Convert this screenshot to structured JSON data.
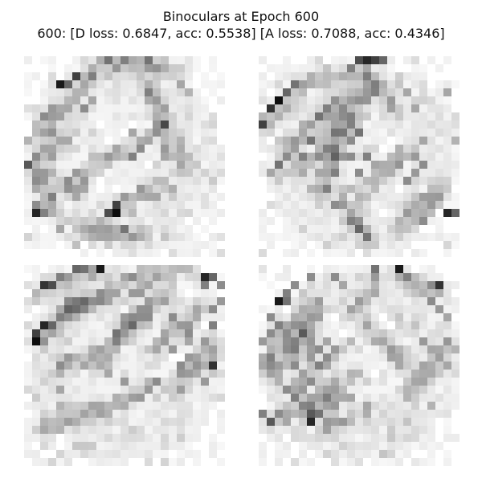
{
  "figure": {
    "title": "Binoculars at Epoch 600",
    "subtitle": "600: [D loss: 0.6847, acc: 0.5538]  [A loss: 0.7088, acc: 0.4346]"
  },
  "panels": [
    {
      "dark_strokes": [
        [
          [
            2,
            9
          ],
          [
            8,
            2
          ]
        ],
        [
          [
            9,
            0
          ],
          [
            19,
            1
          ]
        ],
        [
          [
            15,
            3
          ],
          [
            19,
            13
          ]
        ],
        [
          [
            0,
            13
          ],
          [
            5,
            10
          ]
        ],
        [
          [
            5,
            16
          ],
          [
            11,
            12
          ]
        ],
        [
          [
            10,
            19
          ],
          [
            17,
            15
          ]
        ],
        [
          [
            13,
            11
          ],
          [
            17,
            8
          ]
        ],
        [
          [
            6,
            21
          ],
          [
            14,
            22
          ]
        ],
        [
          [
            1,
            14
          ],
          [
            3,
            19
          ]
        ]
      ],
      "dark_pixels": [
        [
          4,
          3,
          0.9
        ],
        [
          6,
          2,
          0.75
        ],
        [
          5,
          3,
          0.6
        ],
        [
          10,
          0,
          0.55
        ],
        [
          12,
          0,
          0.5
        ],
        [
          15,
          0,
          0.55
        ],
        [
          2,
          7,
          0.45
        ],
        [
          3,
          6,
          0.4
        ],
        [
          7,
          6,
          0.45
        ],
        [
          8,
          5,
          0.35
        ],
        [
          15,
          4,
          0.5
        ],
        [
          16,
          5,
          0.4
        ],
        [
          19,
          3,
          0.35
        ],
        [
          20,
          4,
          0.3
        ],
        [
          0,
          13,
          0.65
        ],
        [
          1,
          12,
          0.45
        ],
        [
          2,
          14,
          0.4
        ],
        [
          1,
          15,
          0.45
        ],
        [
          5,
          15,
          0.45
        ],
        [
          6,
          14,
          0.4
        ],
        [
          3,
          17,
          0.5
        ],
        [
          1,
          18,
          0.45
        ],
        [
          2,
          19,
          0.5
        ],
        [
          1,
          19,
          0.85
        ],
        [
          6,
          17,
          0.35
        ],
        [
          7,
          16,
          0.35
        ],
        [
          10,
          19,
          0.7
        ],
        [
          11,
          18,
          0.75
        ],
        [
          11,
          19,
          0.95
        ],
        [
          9,
          20,
          0.3
        ],
        [
          12,
          17,
          0.4
        ],
        [
          13,
          12,
          0.5
        ],
        [
          14,
          11,
          0.45
        ],
        [
          10,
          12,
          0.4
        ],
        [
          11,
          11,
          0.35
        ],
        [
          17,
          11,
          0.4
        ],
        [
          17,
          12,
          0.35
        ],
        [
          9,
          22,
          0.35
        ],
        [
          12,
          21,
          0.3
        ],
        [
          16,
          17,
          0.35
        ],
        [
          13,
          9,
          0.35
        ],
        [
          19,
          10,
          0.3
        ],
        [
          0,
          10,
          0.3
        ],
        [
          8,
          12,
          0.25
        ],
        [
          4,
          21,
          0.35
        ],
        [
          6,
          23,
          0.25
        ],
        [
          14,
          21,
          0.25
        ],
        [
          3,
          14,
          0.3
        ]
      ]
    },
    {
      "dark_strokes": [
        [
          [
            0,
            8
          ],
          [
            3,
            5
          ]
        ],
        [
          [
            4,
            3
          ],
          [
            11,
            2
          ]
        ],
        [
          [
            3,
            11
          ],
          [
            10,
            5
          ]
        ],
        [
          [
            5,
            14
          ],
          [
            9,
            8
          ]
        ],
        [
          [
            7,
            17
          ],
          [
            10,
            6
          ]
        ],
        [
          [
            9,
            13
          ],
          [
            13,
            3
          ]
        ],
        [
          [
            12,
            17
          ],
          [
            18,
            11
          ]
        ],
        [
          [
            17,
            21
          ],
          [
            22,
            16
          ]
        ],
        [
          [
            13,
            1
          ],
          [
            16,
            6
          ]
        ],
        [
          [
            10,
            17
          ],
          [
            13,
            22
          ]
        ]
      ],
      "dark_pixels": [
        [
          2,
          5,
          0.95
        ],
        [
          1,
          6,
          0.8
        ],
        [
          0,
          8,
          0.75
        ],
        [
          3,
          4,
          0.6
        ],
        [
          4,
          3,
          0.55
        ],
        [
          13,
          0,
          0.85
        ],
        [
          14,
          0,
          0.75
        ],
        [
          12,
          0,
          0.7
        ],
        [
          15,
          0,
          0.6
        ],
        [
          11,
          1,
          0.5
        ],
        [
          8,
          6,
          0.5
        ],
        [
          7,
          7,
          0.55
        ],
        [
          6,
          10,
          0.55
        ],
        [
          5,
          12,
          0.5
        ],
        [
          7,
          12,
          0.45
        ],
        [
          8,
          11,
          0.5
        ],
        [
          10,
          7,
          0.45
        ],
        [
          11,
          8,
          0.5
        ],
        [
          11,
          10,
          0.45
        ],
        [
          12,
          9,
          0.55
        ],
        [
          11,
          12,
          0.45
        ],
        [
          13,
          12,
          0.5
        ],
        [
          14,
          13,
          0.35
        ],
        [
          12,
          14,
          0.45
        ],
        [
          2,
          13,
          0.55
        ],
        [
          3,
          12,
          0.45
        ],
        [
          1,
          14,
          0.35
        ],
        [
          9,
          14,
          0.5
        ],
        [
          8,
          16,
          0.5
        ],
        [
          9,
          18,
          0.45
        ],
        [
          10,
          18,
          0.4
        ],
        [
          11,
          20,
          0.5
        ],
        [
          12,
          21,
          0.6
        ],
        [
          13,
          22,
          0.55
        ],
        [
          18,
          15,
          0.45
        ],
        [
          19,
          14,
          0.4
        ],
        [
          20,
          13,
          0.45
        ],
        [
          19,
          12,
          0.4
        ],
        [
          18,
          19,
          0.4
        ],
        [
          20,
          20,
          0.45
        ],
        [
          23,
          19,
          0.85
        ],
        [
          24,
          19,
          0.6
        ],
        [
          21,
          18,
          0.4
        ],
        [
          22,
          17,
          0.4
        ],
        [
          20,
          10,
          0.35
        ],
        [
          19,
          6,
          0.35
        ],
        [
          18,
          4,
          0.35
        ],
        [
          23,
          4,
          0.35
        ],
        [
          24,
          10,
          0.3
        ],
        [
          14,
          3,
          0.35
        ],
        [
          13,
          5,
          0.3
        ]
      ]
    },
    {
      "dark_strokes": [
        [
          [
            1,
            3
          ],
          [
            9,
            0
          ]
        ],
        [
          [
            1,
            9
          ],
          [
            7,
            4
          ]
        ],
        [
          [
            4,
            5
          ],
          [
            11,
            3
          ]
        ],
        [
          [
            11,
            8
          ],
          [
            17,
            3
          ]
        ],
        [
          [
            9,
            12
          ],
          [
            14,
            6
          ]
        ],
        [
          [
            3,
            13
          ],
          [
            9,
            10
          ]
        ],
        [
          [
            15,
            10
          ],
          [
            22,
            5
          ]
        ],
        [
          [
            9,
            18
          ],
          [
            16,
            14
          ]
        ],
        [
          [
            18,
            15
          ],
          [
            23,
            10
          ]
        ],
        [
          [
            12,
            1
          ],
          [
            20,
            0
          ]
        ],
        [
          [
            2,
            20
          ],
          [
            9,
            17
          ]
        ]
      ],
      "dark_pixels": [
        [
          2,
          2,
          0.8
        ],
        [
          3,
          2,
          0.7
        ],
        [
          6,
          0,
          0.6
        ],
        [
          7,
          0,
          0.55
        ],
        [
          9,
          0,
          0.9
        ],
        [
          4,
          1,
          0.5
        ],
        [
          1,
          8,
          0.75
        ],
        [
          2,
          7,
          0.85
        ],
        [
          1,
          9,
          0.95
        ],
        [
          3,
          7,
          0.6
        ],
        [
          4,
          6,
          0.5
        ],
        [
          6,
          5,
          0.45
        ],
        [
          7,
          4,
          0.5
        ],
        [
          5,
          4,
          0.4
        ],
        [
          11,
          8,
          0.55
        ],
        [
          12,
          7,
          0.45
        ],
        [
          11,
          9,
          0.5
        ],
        [
          15,
          6,
          0.45
        ],
        [
          13,
          3,
          0.4
        ],
        [
          14,
          3,
          0.4
        ],
        [
          15,
          2,
          0.35
        ],
        [
          13,
          1,
          0.45
        ],
        [
          12,
          6,
          0.4
        ],
        [
          18,
          6,
          0.45
        ],
        [
          19,
          7,
          0.4
        ],
        [
          20,
          8,
          0.45
        ],
        [
          20,
          9,
          0.35
        ],
        [
          18,
          10,
          0.4
        ],
        [
          19,
          12,
          0.45
        ],
        [
          20,
          11,
          0.4
        ],
        [
          22,
          1,
          0.85
        ],
        [
          23,
          1,
          0.6
        ],
        [
          22,
          2,
          0.5
        ],
        [
          24,
          2,
          0.45
        ],
        [
          23,
          5,
          0.45
        ],
        [
          24,
          4,
          0.4
        ],
        [
          23,
          7,
          0.5
        ],
        [
          22,
          9,
          0.4
        ],
        [
          23,
          12,
          0.8
        ],
        [
          22,
          14,
          0.4
        ],
        [
          4,
          12,
          0.45
        ],
        [
          5,
          11,
          0.4
        ],
        [
          7,
          12,
          0.35
        ],
        [
          4,
          15,
          0.35
        ],
        [
          10,
          13,
          0.35
        ],
        [
          12,
          14,
          0.4
        ],
        [
          15,
          15,
          0.4
        ],
        [
          16,
          14,
          0.45
        ],
        [
          9,
          17,
          0.35
        ],
        [
          4,
          17,
          0.3
        ],
        [
          2,
          19,
          0.3
        ]
      ]
    },
    {
      "dark_strokes": [
        [
          [
            2,
            8
          ],
          [
            7,
            4
          ]
        ],
        [
          [
            0,
            11
          ],
          [
            6,
            7
          ]
        ],
        [
          [
            1,
            13
          ],
          [
            6,
            9
          ]
        ],
        [
          [
            3,
            15
          ],
          [
            10,
            10
          ]
        ],
        [
          [
            5,
            17
          ],
          [
            12,
            13
          ]
        ],
        [
          [
            1,
            19
          ],
          [
            10,
            16
          ]
        ],
        [
          [
            8,
            20
          ],
          [
            14,
            17
          ]
        ],
        [
          [
            11,
            6
          ],
          [
            14,
            2
          ]
        ],
        [
          [
            17,
            1
          ],
          [
            22,
            3
          ]
        ],
        [
          [
            13,
            7
          ],
          [
            18,
            12
          ]
        ],
        [
          [
            18,
            16
          ],
          [
            23,
            9
          ]
        ]
      ],
      "dark_pixels": [
        [
          2,
          4,
          0.9
        ],
        [
          3,
          4,
          0.55
        ],
        [
          3,
          3,
          0.5
        ],
        [
          4,
          2,
          0.45
        ],
        [
          6,
          1,
          0.45
        ],
        [
          1,
          6,
          0.45
        ],
        [
          2,
          7,
          0.5
        ],
        [
          1,
          8,
          0.45
        ],
        [
          0,
          9,
          0.4
        ],
        [
          5,
          7,
          0.45
        ],
        [
          6,
          6,
          0.4
        ],
        [
          4,
          9,
          0.5
        ],
        [
          5,
          8,
          0.65
        ],
        [
          3,
          10,
          0.45
        ],
        [
          1,
          11,
          0.5
        ],
        [
          0,
          12,
          0.35
        ],
        [
          4,
          12,
          0.45
        ],
        [
          6,
          11,
          0.4
        ],
        [
          7,
          10,
          0.45
        ],
        [
          8,
          9,
          0.35
        ],
        [
          7,
          12,
          0.5
        ],
        [
          8,
          11,
          0.45
        ],
        [
          9,
          10,
          0.4
        ],
        [
          3,
          15,
          0.45
        ],
        [
          5,
          15,
          0.4
        ],
        [
          6,
          14,
          0.45
        ],
        [
          4,
          16,
          0.5
        ],
        [
          1,
          19,
          0.65
        ],
        [
          0,
          18,
          0.5
        ],
        [
          2,
          18,
          0.45
        ],
        [
          6,
          18,
          0.65
        ],
        [
          7,
          18,
          0.55
        ],
        [
          6,
          19,
          0.85
        ],
        [
          8,
          19,
          0.4
        ],
        [
          9,
          17,
          0.4
        ],
        [
          11,
          16,
          0.35
        ],
        [
          13,
          17,
          0.35
        ],
        [
          9,
          1,
          0.45
        ],
        [
          10,
          2,
          0.35
        ],
        [
          14,
          0,
          0.55
        ],
        [
          14,
          1,
          0.4
        ],
        [
          17,
          0,
          0.9
        ],
        [
          18,
          1,
          0.5
        ],
        [
          21,
          2,
          0.45
        ],
        [
          22,
          2,
          0.8
        ],
        [
          21,
          4,
          0.45
        ],
        [
          22,
          5,
          0.4
        ],
        [
          23,
          6,
          0.35
        ],
        [
          20,
          9,
          0.4
        ],
        [
          21,
          10,
          0.35
        ],
        [
          23,
          12,
          0.35
        ],
        [
          24,
          10,
          0.3
        ],
        [
          19,
          14,
          0.35
        ],
        [
          21,
          17,
          0.3
        ],
        [
          15,
          9,
          0.35
        ],
        [
          16,
          10,
          0.4
        ],
        [
          17,
          11,
          0.35
        ]
      ]
    }
  ]
}
